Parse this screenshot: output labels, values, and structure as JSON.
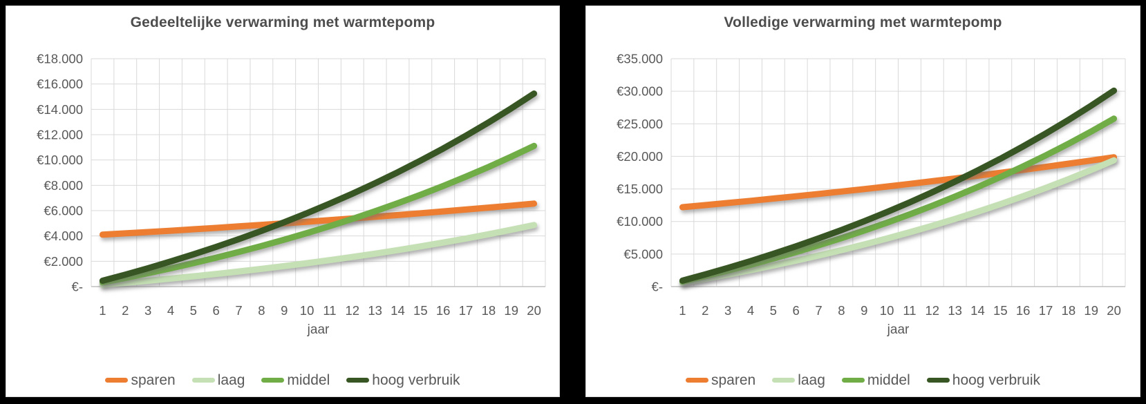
{
  "colors": {
    "background": "#000000",
    "panel": "#FFFFFF",
    "grid": "#D9D9D9",
    "axis": "#BFBFBF",
    "text": "#595959",
    "title": "#4D4D4D",
    "sparen": "#ED7D31",
    "laag": "#C5E0B4",
    "middel": "#70AD47",
    "hoog_verbruik": "#375623"
  },
  "chart_data": [
    {
      "type": "line",
      "title": "Gedeeltelijke verwarming met warmtepomp",
      "xlabel": "jaar",
      "grid": true,
      "legend_position": "bottom",
      "x": [
        1,
        2,
        3,
        4,
        5,
        6,
        7,
        8,
        9,
        10,
        11,
        12,
        13,
        14,
        15,
        16,
        17,
        18,
        19,
        20
      ],
      "ylim": [
        0,
        18000
      ],
      "ytick_step": 2000,
      "ytick_labels": [
        "€-",
        "€2.000",
        "€4.000",
        "€6.000",
        "€8.000",
        "€10.000",
        "€12.000",
        "€14.000",
        "€16.000",
        "€18.000"
      ],
      "series": [
        {
          "name": "sparen",
          "color": "#ED7D31",
          "values": [
            4100,
            4203,
            4308,
            4415,
            4526,
            4639,
            4755,
            4874,
            4996,
            5120,
            5248,
            5380,
            5514,
            5652,
            5793,
            5938,
            6087,
            6239,
            6395,
            6555
          ]
        },
        {
          "name": "laag",
          "color": "#C5E0B4",
          "values": [
            147,
            301,
            463,
            634,
            812,
            1000,
            1197,
            1404,
            1621,
            1849,
            2088,
            2340,
            2604,
            2881,
            3172,
            3478,
            3799,
            4135,
            4489,
            4861
          ]
        },
        {
          "name": "middel",
          "color": "#70AD47",
          "values": [
            336,
            689,
            1059,
            1448,
            1857,
            2285,
            2736,
            3208,
            3705,
            4226,
            4773,
            5348,
            5952,
            6585,
            7250,
            7949,
            8682,
            9452,
            10261,
            11110
          ]
        },
        {
          "name": "hoog verbruik",
          "color": "#375623",
          "values": [
            461,
            945,
            1453,
            1987,
            2547,
            3136,
            3753,
            4402,
            5083,
            5798,
            6549,
            7338,
            8166,
            9035,
            9948,
            10906,
            11912,
            12969,
            14078,
            15244
          ]
        }
      ]
    },
    {
      "type": "line",
      "title": "Volledige verwarming met warmtepomp",
      "xlabel": "jaar",
      "grid": true,
      "legend_position": "bottom",
      "x": [
        1,
        2,
        3,
        4,
        5,
        6,
        7,
        8,
        9,
        10,
        11,
        12,
        13,
        14,
        15,
        16,
        17,
        18,
        19,
        20
      ],
      "ylim": [
        0,
        35000
      ],
      "ytick_step": 5000,
      "ytick_labels": [
        "€-",
        "€5.000",
        "€10.000",
        "€15.000",
        "€20.000",
        "€25.000",
        "€30.000",
        "€35.000"
      ],
      "series": [
        {
          "name": "sparen",
          "color": "#ED7D31",
          "values": [
            12200,
            12517,
            12843,
            13177,
            13519,
            13871,
            14231,
            14601,
            14981,
            15371,
            15770,
            16180,
            16601,
            17033,
            17476,
            17930,
            18396,
            18874,
            19365,
            19869
          ]
        },
        {
          "name": "laag",
          "color": "#C5E0B4",
          "values": [
            587,
            1203,
            1850,
            2529,
            3242,
            3991,
            4777,
            5602,
            6469,
            7379,
            8335,
            9339,
            10392,
            11498,
            12660,
            13880,
            15160,
            16505,
            17917,
            19400
          ]
        },
        {
          "name": "middel",
          "color": "#70AD47",
          "values": [
            780,
            1599,
            2459,
            3362,
            4310,
            5305,
            6351,
            7448,
            8601,
            9811,
            11081,
            12415,
            13816,
            15287,
            16831,
            18453,
            20155,
            21943,
            23820,
            25791
          ]
        },
        {
          "name": "hoog verbruik",
          "color": "#375623",
          "values": [
            910,
            1866,
            2869,
            3922,
            5028,
            6190,
            7409,
            8690,
            10034,
            11446,
            12928,
            14485,
            16119,
            17835,
            19636,
            21528,
            23515,
            25600,
            27790,
            30090
          ]
        }
      ]
    }
  ]
}
